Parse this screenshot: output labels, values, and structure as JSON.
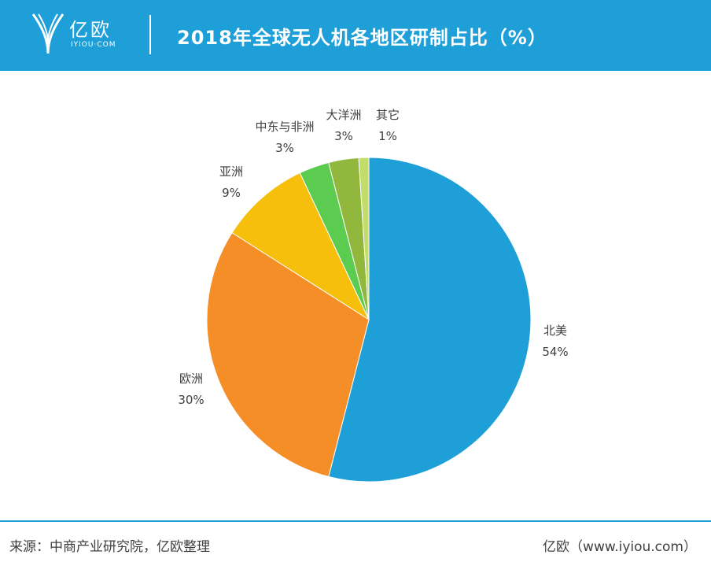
{
  "header": {
    "brand_name": "亿欧",
    "brand_sub": "IYIOU·COM",
    "title": "2018年全球无人机各地区研制占比（%）"
  },
  "chart_data": {
    "type": "pie",
    "categories": [
      "北美",
      "欧洲",
      "亚洲",
      "中东与非洲",
      "大洋洲",
      "其它"
    ],
    "values": [
      54,
      30,
      9,
      3,
      3,
      1
    ],
    "value_labels": [
      "54%",
      "30%",
      "9%",
      "3%",
      "3%",
      "1%"
    ],
    "colors": [
      "#1e9fd8",
      "#f58e27",
      "#f6bf0b",
      "#5bcc4f",
      "#91b83c",
      "#c2dd6a"
    ]
  },
  "footer": {
    "source": "来源：中商产业研究院，亿欧整理",
    "site": "亿欧（www.iyiou.com）"
  }
}
